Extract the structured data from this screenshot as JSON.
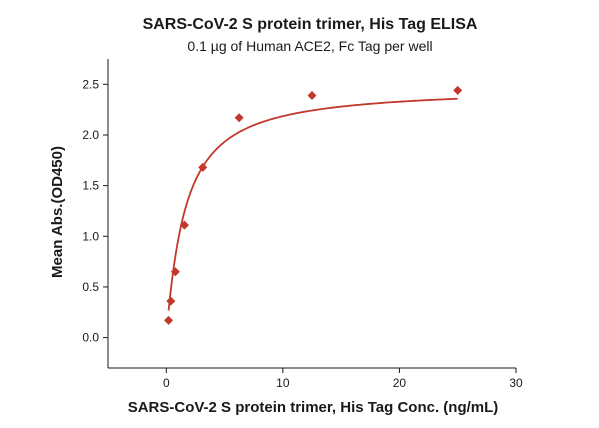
{
  "chart_data": {
    "type": "scatter",
    "title": "SARS-CoV-2 S protein trimer, His Tag ELISA",
    "subtitle": "0.1 µg of Human ACE2, Fc Tag per well",
    "xlabel": "SARS-CoV-2 S protein trimer, His Tag Conc. (ng/mL)",
    "ylabel": "Mean Abs.(OD450)",
    "xlim": [
      -5,
      30
    ],
    "ylim": [
      -0.3,
      2.75
    ],
    "x_ticks": [
      0,
      10,
      20,
      30
    ],
    "y_ticks": [
      0.0,
      0.5,
      1.0,
      1.5,
      2.0,
      2.5
    ],
    "x_tick_labels": [
      "0",
      "10",
      "20",
      "30"
    ],
    "y_tick_labels": [
      "0.0",
      "0.5",
      "1.0",
      "1.5",
      "2.0",
      "2.5"
    ],
    "grid": false,
    "marker": "diamond",
    "color": "#c0392b",
    "series": [
      {
        "x": [
          0.195,
          0.39,
          0.78,
          1.56,
          3.125,
          6.25,
          12.5,
          25
        ],
        "y": [
          0.17,
          0.36,
          0.65,
          1.11,
          1.68,
          2.17,
          2.39,
          2.44
        ]
      }
    ],
    "fit_curve": {
      "type": "four-parameter-logistic",
      "bottom": 0.05,
      "top": 2.47,
      "ec50": 1.6,
      "hill": 1.1
    }
  }
}
